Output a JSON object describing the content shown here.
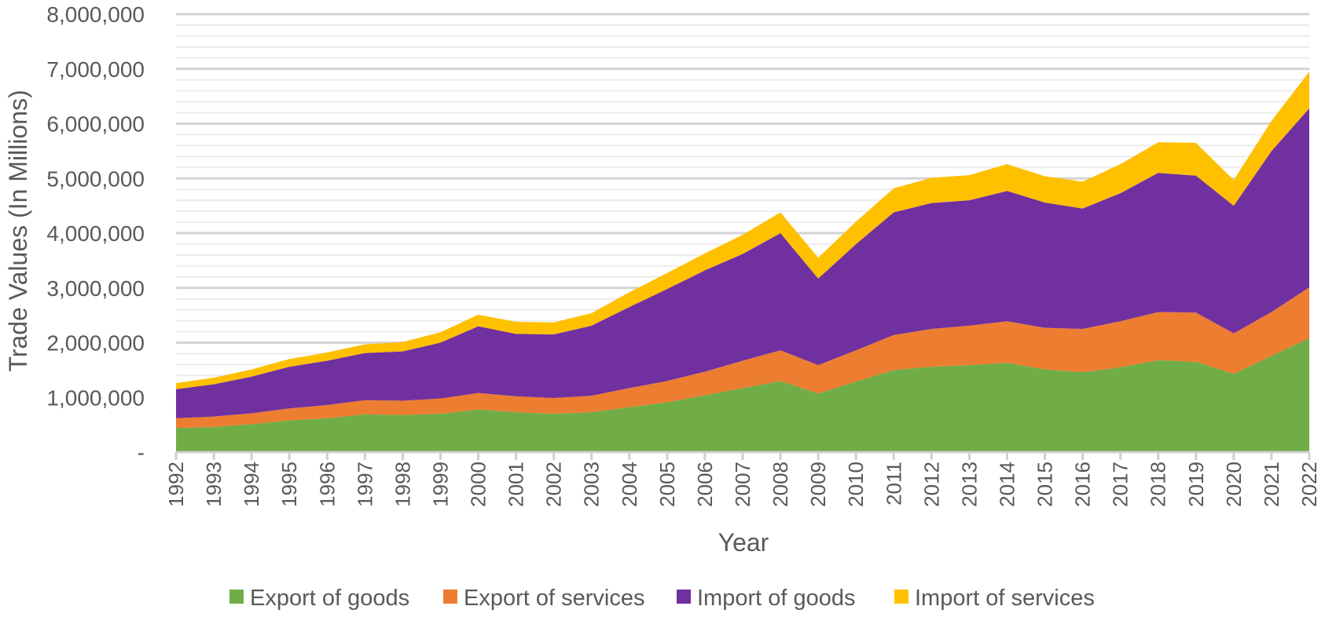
{
  "chart_data": {
    "type": "area",
    "stacked": true,
    "title": "",
    "xlabel": "Year",
    "ylabel": "Trade Values (In Millions)",
    "ylim": [
      0,
      8000000
    ],
    "yticks": [
      0,
      1000000,
      2000000,
      3000000,
      4000000,
      5000000,
      6000000,
      7000000,
      8000000
    ],
    "ytick_labels": [
      "-",
      "1,000,000",
      "2,000,000",
      "3,000,000",
      "4,000,000",
      "5,000,000",
      "6,000,000",
      "7,000,000",
      "8,000,000"
    ],
    "x": [
      "1992",
      "1993",
      "1994",
      "1995",
      "1996",
      "1997",
      "1998",
      "1999",
      "2000",
      "2001",
      "2002",
      "2003",
      "2004",
      "2005",
      "2006",
      "2007",
      "2008",
      "2009",
      "2010",
      "2011",
      "2012",
      "2013",
      "2014",
      "2015",
      "2016",
      "2017",
      "2018",
      "2019",
      "2020",
      "2021",
      "2022"
    ],
    "grid": true,
    "legend_position": "bottom",
    "series": [
      {
        "name": "Export of goods",
        "color": "#70ad47",
        "values": [
          440000,
          460000,
          510000,
          580000,
          620000,
          690000,
          680000,
          700000,
          780000,
          730000,
          700000,
          730000,
          820000,
          910000,
          1040000,
          1170000,
          1300000,
          1070000,
          1290000,
          1500000,
          1560000,
          1590000,
          1630000,
          1510000,
          1460000,
          1550000,
          1680000,
          1650000,
          1430000,
          1760000,
          2080000
        ]
      },
      {
        "name": "Export of services",
        "color": "#ed7d31",
        "values": [
          180000,
          190000,
          200000,
          220000,
          240000,
          260000,
          260000,
          280000,
          300000,
          290000,
          290000,
          300000,
          350000,
          390000,
          430000,
          500000,
          560000,
          520000,
          570000,
          640000,
          690000,
          720000,
          760000,
          760000,
          790000,
          840000,
          880000,
          900000,
          740000,
          800000,
          930000
        ]
      },
      {
        "name": "Import of goods",
        "color": "#7030a0",
        "values": [
          530000,
          590000,
          670000,
          760000,
          810000,
          860000,
          900000,
          1020000,
          1220000,
          1140000,
          1160000,
          1280000,
          1480000,
          1680000,
          1850000,
          1950000,
          2140000,
          1580000,
          1940000,
          2240000,
          2300000,
          2290000,
          2380000,
          2290000,
          2200000,
          2340000,
          2540000,
          2500000,
          2330000,
          2940000,
          3270000
        ]
      },
      {
        "name": "Import of services",
        "color": "#ffc000",
        "values": [
          110000,
          120000,
          130000,
          140000,
          150000,
          160000,
          170000,
          190000,
          210000,
          220000,
          220000,
          230000,
          270000,
          290000,
          310000,
          350000,
          380000,
          380000,
          410000,
          440000,
          460000,
          460000,
          490000,
          480000,
          490000,
          530000,
          560000,
          600000,
          470000,
          550000,
          670000
        ]
      }
    ]
  }
}
